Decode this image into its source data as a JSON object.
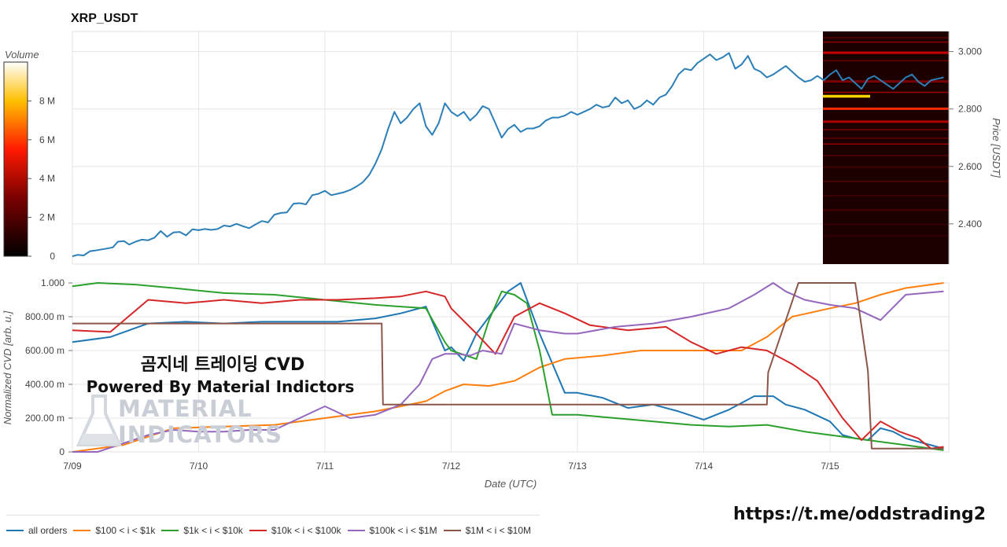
{
  "title": "XRP_USDT",
  "overlay": {
    "line1": "곰지네 트레이딩 CVD",
    "line2": "Powered By Material Indictors"
  },
  "watermark": {
    "line1": "MATERIAL",
    "line2": "INDICATORS"
  },
  "link": "https://t.me/oddstrading2",
  "colors": {
    "price": "#2d7fb8",
    "heatmap_bg": "#1c0000"
  },
  "chart_data": [
    {
      "type": "line",
      "panel": "price",
      "title": "XRP_USDT",
      "ylabel": "Price [USDT]",
      "ylim": [
        2.26,
        3.07
      ],
      "yticks": [
        2.4,
        2.6,
        2.8,
        3.0
      ],
      "ytick_labels": [
        "2.400",
        "2.600",
        "2.800",
        "3.000"
      ],
      "x_days": [
        0,
        0.04,
        0.09,
        0.14,
        0.18,
        0.22,
        0.27,
        0.32,
        0.36,
        0.41,
        0.45,
        0.5,
        0.55,
        0.6,
        0.65,
        0.7,
        0.75,
        0.8,
        0.85,
        0.9,
        0.95,
        1,
        1.05,
        1.1,
        1.15,
        1.2,
        1.25,
        1.3,
        1.35,
        1.4,
        1.45,
        1.5,
        1.55,
        1.6,
        1.65,
        1.7,
        1.75,
        1.8,
        1.85,
        1.9,
        1.95,
        2,
        2.05,
        2.1,
        2.15,
        2.2,
        2.25,
        2.3,
        2.35,
        2.4,
        2.45,
        2.5,
        2.55,
        2.6,
        2.65,
        2.7,
        2.75,
        2.8,
        2.85,
        2.9,
        2.95,
        3,
        3.05,
        3.1,
        3.15,
        3.2,
        3.25,
        3.3,
        3.35,
        3.4,
        3.45,
        3.5,
        3.55,
        3.6,
        3.65,
        3.7,
        3.75,
        3.8,
        3.85,
        3.9,
        3.95,
        4,
        4.05,
        4.1,
        4.15,
        4.2,
        4.25,
        4.3,
        4.35,
        4.4,
        4.45,
        4.5,
        4.55,
        4.6,
        4.65,
        4.7,
        4.75,
        4.8,
        4.85,
        4.9,
        4.95,
        5,
        5.05,
        5.1,
        5.15,
        5.2,
        5.25,
        5.3,
        5.35,
        5.4,
        5.45,
        5.5,
        5.55,
        5.6,
        5.65,
        5.7,
        5.75,
        5.8,
        5.85,
        5.9,
        5.95,
        6,
        6.05,
        6.1,
        6.15,
        6.2,
        6.25,
        6.3,
        6.35,
        6.4,
        6.45,
        6.5,
        6.55,
        6.6,
        6.65,
        6.7,
        6.75,
        6.8,
        6.85,
        6.9
      ],
      "y": [
        2.287,
        2.292,
        2.29,
        2.305,
        2.307,
        2.31,
        2.314,
        2.318,
        2.338,
        2.34,
        2.328,
        2.338,
        2.345,
        2.343,
        2.352,
        2.375,
        2.355,
        2.37,
        2.372,
        2.36,
        2.381,
        2.378,
        2.382,
        2.379,
        2.382,
        2.394,
        2.391,
        2.4,
        2.392,
        2.385,
        2.398,
        2.41,
        2.405,
        2.432,
        2.438,
        2.44,
        2.47,
        2.472,
        2.468,
        2.5,
        2.505,
        2.515,
        2.5,
        2.505,
        2.51,
        2.518,
        2.53,
        2.545,
        2.57,
        2.61,
        2.66,
        2.73,
        2.79,
        2.75,
        2.77,
        2.8,
        2.82,
        2.74,
        2.71,
        2.75,
        2.82,
        2.79,
        2.775,
        2.79,
        2.76,
        2.78,
        2.81,
        2.8,
        2.75,
        2.7,
        2.73,
        2.745,
        2.72,
        2.732,
        2.732,
        2.74,
        2.76,
        2.77,
        2.77,
        2.777,
        2.79,
        2.78,
        2.79,
        2.8,
        2.815,
        2.805,
        2.81,
        2.84,
        2.82,
        2.83,
        2.8,
        2.81,
        2.83,
        2.815,
        2.84,
        2.85,
        2.88,
        2.92,
        2.94,
        2.935,
        2.96,
        2.975,
        2.99,
        2.97,
        2.98,
        2.995,
        2.94,
        2.955,
        2.985,
        2.94,
        2.93,
        2.91,
        2.92,
        2.935,
        2.95,
        2.93,
        2.91,
        2.895,
        2.9,
        2.915,
        2.9,
        2.92,
        2.935,
        2.9,
        2.91,
        2.89,
        2.87,
        2.905,
        2.915,
        2.9,
        2.885,
        2.87,
        2.89,
        2.91,
        2.92,
        2.895,
        2.88,
        2.9,
        2.905,
        2.91
      ]
    },
    {
      "type": "heatmap",
      "panel": "orderbook",
      "legend_title": "Volume",
      "colorbar_ticks": [
        0,
        2,
        4,
        6,
        8
      ],
      "colorbar_labels": [
        "0",
        "2 M",
        "4 M",
        "6 M",
        "8 M"
      ],
      "colorbar_max": 10
    },
    {
      "type": "line",
      "panel": "cvd",
      "xlabel": "Date (UTC)",
      "ylabel": "Normalized CVD [arb. u.]",
      "ylim": [
        0,
        1
      ],
      "yticks": [
        0,
        0.2,
        0.4,
        0.6,
        0.8,
        1.0
      ],
      "ytick_labels": [
        "0",
        "200.00 m",
        "400.00 m",
        "600.00 m",
        "800.00 m",
        "1.000"
      ],
      "x_tick_labels": [
        "7/09",
        "7/10",
        "7/11",
        "7/12",
        "7/13",
        "7/14",
        "7/15"
      ],
      "series": [
        {
          "name": "all orders",
          "color": "#1f77b4",
          "x": [
            0,
            0.3,
            0.6,
            0.9,
            1.2,
            1.5,
            1.8,
            2.1,
            2.4,
            2.6,
            2.8,
            2.95,
            3.0,
            3.1,
            3.2,
            3.35,
            3.45,
            3.55,
            3.7,
            3.9,
            4.0,
            4.2,
            4.4,
            4.6,
            4.8,
            5.0,
            5.2,
            5.4,
            5.55,
            5.65,
            5.8,
            6.0,
            6.1,
            6.2,
            6.3,
            6.4,
            6.5,
            6.6,
            6.7,
            6.8,
            6.9
          ],
          "y": [
            0.65,
            0.68,
            0.76,
            0.77,
            0.76,
            0.77,
            0.77,
            0.77,
            0.79,
            0.82,
            0.86,
            0.6,
            0.62,
            0.54,
            0.7,
            0.85,
            0.95,
            1.0,
            0.7,
            0.35,
            0.35,
            0.32,
            0.26,
            0.28,
            0.24,
            0.19,
            0.25,
            0.33,
            0.33,
            0.28,
            0.25,
            0.18,
            0.1,
            0.08,
            0.07,
            0.14,
            0.12,
            0.08,
            0.06,
            0.04,
            0.02
          ]
        },
        {
          "name": "$100 < i < $1k",
          "color": "#ff7f0e",
          "x": [
            0,
            0.4,
            0.8,
            1.2,
            1.6,
            2.0,
            2.4,
            2.6,
            2.8,
            2.95,
            3.1,
            3.3,
            3.5,
            3.7,
            3.9,
            4.2,
            4.5,
            4.8,
            5.0,
            5.3,
            5.5,
            5.7,
            6.0,
            6.2,
            6.4,
            6.6,
            6.9
          ],
          "y": [
            0.0,
            0.04,
            0.14,
            0.15,
            0.16,
            0.2,
            0.24,
            0.27,
            0.3,
            0.36,
            0.4,
            0.39,
            0.42,
            0.5,
            0.55,
            0.57,
            0.6,
            0.6,
            0.6,
            0.6,
            0.68,
            0.8,
            0.85,
            0.88,
            0.93,
            0.97,
            1.0
          ]
        },
        {
          "name": "$1k < i < $10k",
          "color": "#2ca02c",
          "x": [
            0,
            0.2,
            0.5,
            0.8,
            1.2,
            1.6,
            2.0,
            2.4,
            2.6,
            2.8,
            2.95,
            3.0,
            3.2,
            3.3,
            3.4,
            3.5,
            3.6,
            3.7,
            3.8,
            4.0,
            4.3,
            4.6,
            4.9,
            5.2,
            5.5,
            5.8,
            6.0,
            6.2,
            6.4,
            6.6,
            6.9
          ],
          "y": [
            0.98,
            1.0,
            0.99,
            0.97,
            0.94,
            0.93,
            0.9,
            0.87,
            0.86,
            0.85,
            0.65,
            0.6,
            0.55,
            0.78,
            0.95,
            0.93,
            0.88,
            0.6,
            0.22,
            0.22,
            0.2,
            0.18,
            0.16,
            0.15,
            0.16,
            0.12,
            0.1,
            0.08,
            0.06,
            0.04,
            0.01
          ]
        },
        {
          "name": "$10k < i < $100k",
          "color": "#d62728",
          "x": [
            0,
            0.3,
            0.6,
            0.9,
            1.2,
            1.5,
            1.8,
            2.1,
            2.4,
            2.6,
            2.8,
            2.95,
            3.0,
            3.2,
            3.35,
            3.5,
            3.7,
            3.9,
            4.1,
            4.4,
            4.7,
            4.9,
            5.1,
            5.3,
            5.5,
            5.7,
            5.9,
            6.1,
            6.25,
            6.4,
            6.55,
            6.7,
            6.8,
            6.9
          ],
          "y": [
            0.72,
            0.71,
            0.9,
            0.88,
            0.9,
            0.88,
            0.9,
            0.9,
            0.91,
            0.92,
            0.95,
            0.92,
            0.85,
            0.7,
            0.58,
            0.8,
            0.88,
            0.82,
            0.75,
            0.72,
            0.74,
            0.65,
            0.58,
            0.62,
            0.6,
            0.52,
            0.42,
            0.2,
            0.07,
            0.18,
            0.12,
            0.08,
            0.02,
            0.03
          ]
        },
        {
          "name": "$100k < i < $1M",
          "color": "#9467bd",
          "x": [
            0,
            0.2,
            0.4,
            0.6,
            0.8,
            1.0,
            1.2,
            1.4,
            1.6,
            1.8,
            2.0,
            2.2,
            2.4,
            2.6,
            2.75,
            2.85,
            2.95,
            3.05,
            3.15,
            3.25,
            3.4,
            3.5,
            3.7,
            3.9,
            4.0,
            4.3,
            4.6,
            4.9,
            5.2,
            5.4,
            5.55,
            5.65,
            5.8,
            6.0,
            6.2,
            6.4,
            6.6,
            6.9
          ],
          "y": [
            0.0,
            0.0,
            0.05,
            0.1,
            0.13,
            0.12,
            0.12,
            0.13,
            0.13,
            0.2,
            0.27,
            0.2,
            0.22,
            0.28,
            0.4,
            0.55,
            0.58,
            0.58,
            0.57,
            0.6,
            0.58,
            0.76,
            0.72,
            0.7,
            0.7,
            0.74,
            0.76,
            0.8,
            0.85,
            0.93,
            1.0,
            0.95,
            0.9,
            0.87,
            0.85,
            0.78,
            0.93,
            0.95
          ]
        },
        {
          "name": "$1M < i < $10M",
          "color": "#8c564b",
          "x": [
            0,
            2.45,
            2.46,
            5.5,
            5.51,
            5.75,
            6.1,
            6.1,
            6.2,
            6.3,
            6.33,
            6.9
          ],
          "y": [
            0.76,
            0.76,
            0.28,
            0.28,
            0.47,
            1.0,
            1.0,
            1.0,
            1.0,
            0.48,
            0.02,
            0.02
          ]
        }
      ]
    }
  ]
}
